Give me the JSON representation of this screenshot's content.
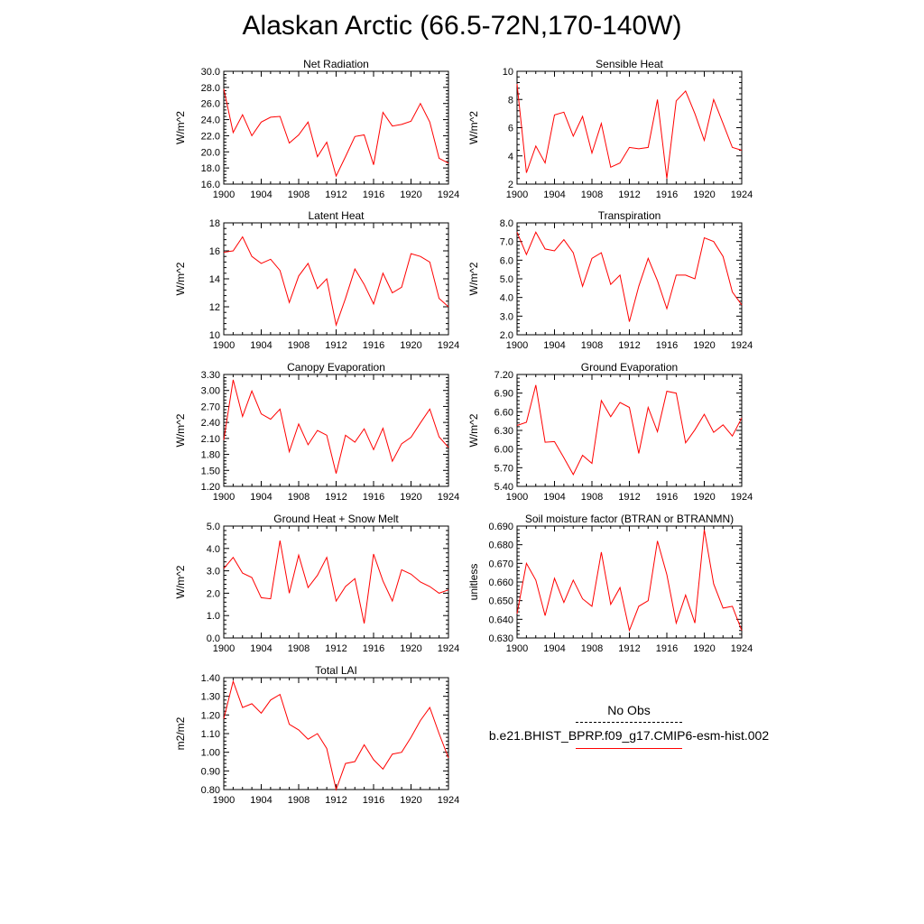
{
  "page": {
    "title": "Alaskan Arctic (66.5-72N,170-140W)"
  },
  "colors": {
    "series": "#ff0000",
    "axis": "#000000"
  },
  "legend": {
    "items": [
      {
        "label": "No Obs",
        "style": "dashed",
        "color": "#000000"
      },
      {
        "label": "b.e21.BHIST_BPRP.f09_g17.CMIP6-esm-hist.002",
        "style": "solid",
        "color": "#ff0000"
      }
    ]
  },
  "chart_data": [
    {
      "type": "line",
      "title": "Net Radiation",
      "ylabel": "W/m^2",
      "xlim": [
        1900,
        1924
      ],
      "xticks": [
        1900,
        1904,
        1908,
        1912,
        1916,
        1920,
        1924
      ],
      "ylim": [
        16.0,
        30.0
      ],
      "yticks": [
        "16.0",
        "18.0",
        "20.0",
        "22.0",
        "24.0",
        "26.0",
        "28.0",
        "30.0"
      ],
      "x": [
        1900,
        1901,
        1902,
        1903,
        1904,
        1905,
        1906,
        1907,
        1908,
        1909,
        1910,
        1911,
        1912,
        1913,
        1914,
        1915,
        1916,
        1917,
        1918,
        1919,
        1920,
        1921,
        1922,
        1923,
        1924
      ],
      "series": [
        {
          "values": [
            27.8,
            22.4,
            24.6,
            22.0,
            23.7,
            24.3,
            24.4,
            21.1,
            22.1,
            23.7,
            19.4,
            21.2,
            17.0,
            19.4,
            21.9,
            22.1,
            18.4,
            24.9,
            23.2,
            23.4,
            23.8,
            26.0,
            23.7,
            19.2,
            18.6
          ]
        }
      ]
    },
    {
      "type": "line",
      "title": "Sensible Heat",
      "ylabel": "W/m^2",
      "xlim": [
        1900,
        1924
      ],
      "xticks": [
        1900,
        1904,
        1908,
        1912,
        1916,
        1920,
        1924
      ],
      "ylim": [
        2,
        10
      ],
      "yticks": [
        "2",
        "4",
        "6",
        "8",
        "10"
      ],
      "x": [
        1900,
        1901,
        1902,
        1903,
        1904,
        1905,
        1906,
        1907,
        1908,
        1909,
        1910,
        1911,
        1912,
        1913,
        1914,
        1915,
        1916,
        1917,
        1918,
        1919,
        1920,
        1921,
        1922,
        1923,
        1924
      ],
      "series": [
        {
          "values": [
            9.1,
            2.8,
            4.7,
            3.5,
            6.9,
            7.1,
            5.4,
            6.8,
            4.2,
            6.3,
            3.2,
            3.5,
            4.6,
            4.5,
            4.6,
            8.0,
            2.4,
            7.9,
            8.6,
            7.0,
            5.1,
            8.0,
            6.3,
            4.6,
            4.4
          ]
        }
      ]
    },
    {
      "type": "line",
      "title": "Latent Heat",
      "ylabel": "W/m^2",
      "xlim": [
        1900,
        1924
      ],
      "xticks": [
        1900,
        1904,
        1908,
        1912,
        1916,
        1920,
        1924
      ],
      "ylim": [
        10,
        18
      ],
      "yticks": [
        "10",
        "12",
        "14",
        "16",
        "18"
      ],
      "x": [
        1900,
        1901,
        1902,
        1903,
        1904,
        1905,
        1906,
        1907,
        1908,
        1909,
        1910,
        1911,
        1912,
        1913,
        1914,
        1915,
        1916,
        1917,
        1918,
        1919,
        1920,
        1921,
        1922,
        1923,
        1924
      ],
      "series": [
        {
          "values": [
            15.9,
            16.0,
            17.0,
            15.6,
            15.1,
            15.4,
            14.6,
            12.3,
            14.2,
            15.1,
            13.3,
            14.0,
            10.7,
            12.6,
            14.7,
            13.6,
            12.2,
            14.4,
            13.0,
            13.4,
            15.8,
            15.6,
            15.2,
            12.6,
            12.0
          ]
        }
      ]
    },
    {
      "type": "line",
      "title": "Transpiration",
      "ylabel": "W/m^2",
      "xlim": [
        1900,
        1924
      ],
      "xticks": [
        1900,
        1904,
        1908,
        1912,
        1916,
        1920,
        1924
      ],
      "ylim": [
        2.0,
        8.0
      ],
      "yticks": [
        "2.0",
        "3.0",
        "4.0",
        "5.0",
        "6.0",
        "7.0",
        "8.0"
      ],
      "x": [
        1900,
        1901,
        1902,
        1903,
        1904,
        1905,
        1906,
        1907,
        1908,
        1909,
        1910,
        1911,
        1912,
        1913,
        1914,
        1915,
        1916,
        1917,
        1918,
        1919,
        1920,
        1921,
        1922,
        1923,
        1924
      ],
      "series": [
        {
          "values": [
            7.5,
            6.3,
            7.5,
            6.6,
            6.5,
            7.1,
            6.4,
            4.6,
            6.1,
            6.4,
            4.7,
            5.2,
            2.7,
            4.6,
            6.1,
            4.9,
            3.4,
            5.2,
            5.2,
            5.0,
            7.2,
            7.0,
            6.2,
            4.3,
            3.6
          ]
        }
      ]
    },
    {
      "type": "line",
      "title": "Canopy Evaporation",
      "ylabel": "W/m^2",
      "xlim": [
        1900,
        1924
      ],
      "xticks": [
        1900,
        1904,
        1908,
        1912,
        1916,
        1920,
        1924
      ],
      "ylim": [
        1.2,
        3.3
      ],
      "yticks": [
        "1.20",
        "1.50",
        "1.80",
        "2.10",
        "2.40",
        "2.70",
        "3.00",
        "3.30"
      ],
      "x": [
        1900,
        1901,
        1902,
        1903,
        1904,
        1905,
        1906,
        1907,
        1908,
        1909,
        1910,
        1911,
        1912,
        1913,
        1914,
        1915,
        1916,
        1917,
        1918,
        1919,
        1920,
        1921,
        1922,
        1923,
        1924
      ],
      "series": [
        {
          "values": [
            2.07,
            3.2,
            2.51,
            2.99,
            2.56,
            2.46,
            2.65,
            1.85,
            2.37,
            1.98,
            2.25,
            2.16,
            1.44,
            2.16,
            2.03,
            2.28,
            1.89,
            2.29,
            1.67,
            2.0,
            2.12,
            2.39,
            2.65,
            2.13,
            1.93
          ]
        }
      ]
    },
    {
      "type": "line",
      "title": "Ground Evaporation",
      "ylabel": "W/m^2",
      "xlim": [
        1900,
        1924
      ],
      "xticks": [
        1900,
        1904,
        1908,
        1912,
        1916,
        1920,
        1924
      ],
      "ylim": [
        5.4,
        7.2
      ],
      "yticks": [
        "5.40",
        "5.70",
        "6.00",
        "6.30",
        "6.60",
        "6.90",
        "7.20"
      ],
      "x": [
        1900,
        1901,
        1902,
        1903,
        1904,
        1905,
        1906,
        1907,
        1908,
        1909,
        1910,
        1911,
        1912,
        1913,
        1914,
        1915,
        1916,
        1917,
        1918,
        1919,
        1920,
        1921,
        1922,
        1923,
        1924
      ],
      "series": [
        {
          "values": [
            6.38,
            6.43,
            7.03,
            6.11,
            6.12,
            5.86,
            5.59,
            5.9,
            5.77,
            6.78,
            6.52,
            6.75,
            6.67,
            5.93,
            6.67,
            6.28,
            6.93,
            6.9,
            6.1,
            6.31,
            6.56,
            6.27,
            6.39,
            6.21,
            6.5
          ]
        }
      ]
    },
    {
      "type": "line",
      "title": "Ground Heat + Snow Melt",
      "ylabel": "W/m^2",
      "xlim": [
        1900,
        1924
      ],
      "xticks": [
        1900,
        1904,
        1908,
        1912,
        1916,
        1920,
        1924
      ],
      "ylim": [
        0.0,
        5.0
      ],
      "yticks": [
        "0.0",
        "1.0",
        "2.0",
        "3.0",
        "4.0",
        "5.0"
      ],
      "x": [
        1900,
        1901,
        1902,
        1903,
        1904,
        1905,
        1906,
        1907,
        1908,
        1909,
        1910,
        1911,
        1912,
        1913,
        1914,
        1915,
        1916,
        1917,
        1918,
        1919,
        1920,
        1921,
        1922,
        1923,
        1924
      ],
      "series": [
        {
          "values": [
            3.1,
            3.6,
            2.9,
            2.7,
            1.8,
            1.75,
            4.35,
            2.0,
            3.7,
            2.25,
            2.8,
            3.6,
            1.65,
            2.3,
            2.65,
            0.65,
            3.75,
            2.55,
            1.65,
            3.05,
            2.85,
            2.5,
            2.3,
            2.0,
            2.15
          ]
        }
      ]
    },
    {
      "type": "line",
      "title": "Soil moisture factor (BTRAN or BTRANMN)",
      "ylabel": "unitless",
      "xlim": [
        1900,
        1924
      ],
      "xticks": [
        1900,
        1904,
        1908,
        1912,
        1916,
        1920,
        1924
      ],
      "ylim": [
        0.63,
        0.69
      ],
      "yticks": [
        "0.630",
        "0.640",
        "0.650",
        "0.660",
        "0.670",
        "0.680",
        "0.690"
      ],
      "x": [
        1900,
        1901,
        1902,
        1903,
        1904,
        1905,
        1906,
        1907,
        1908,
        1909,
        1910,
        1911,
        1912,
        1913,
        1914,
        1915,
        1916,
        1917,
        1918,
        1919,
        1920,
        1921,
        1922,
        1923,
        1924
      ],
      "series": [
        {
          "values": [
            0.643,
            0.67,
            0.661,
            0.642,
            0.662,
            0.649,
            0.661,
            0.651,
            0.647,
            0.676,
            0.648,
            0.657,
            0.634,
            0.647,
            0.65,
            0.682,
            0.664,
            0.638,
            0.653,
            0.638,
            0.688,
            0.659,
            0.646,
            0.647,
            0.634
          ]
        }
      ]
    },
    {
      "type": "line",
      "title": "Total LAI",
      "ylabel": "m2/m2",
      "xlim": [
        1900,
        1924
      ],
      "xticks": [
        1900,
        1904,
        1908,
        1912,
        1916,
        1920,
        1924
      ],
      "ylim": [
        0.8,
        1.4
      ],
      "yticks": [
        "0.80",
        "0.90",
        "1.00",
        "1.10",
        "1.20",
        "1.30",
        "1.40"
      ],
      "x": [
        1900,
        1901,
        1902,
        1903,
        1904,
        1905,
        1906,
        1907,
        1908,
        1909,
        1910,
        1911,
        1912,
        1913,
        1914,
        1915,
        1916,
        1917,
        1918,
        1919,
        1920,
        1921,
        1922,
        1923,
        1924
      ],
      "series": [
        {
          "values": [
            1.18,
            1.38,
            1.24,
            1.26,
            1.21,
            1.28,
            1.31,
            1.15,
            1.12,
            1.07,
            1.1,
            1.02,
            0.8,
            0.94,
            0.95,
            1.04,
            0.96,
            0.91,
            0.99,
            1.0,
            1.08,
            1.17,
            1.24,
            1.1,
            0.97
          ]
        }
      ]
    }
  ]
}
